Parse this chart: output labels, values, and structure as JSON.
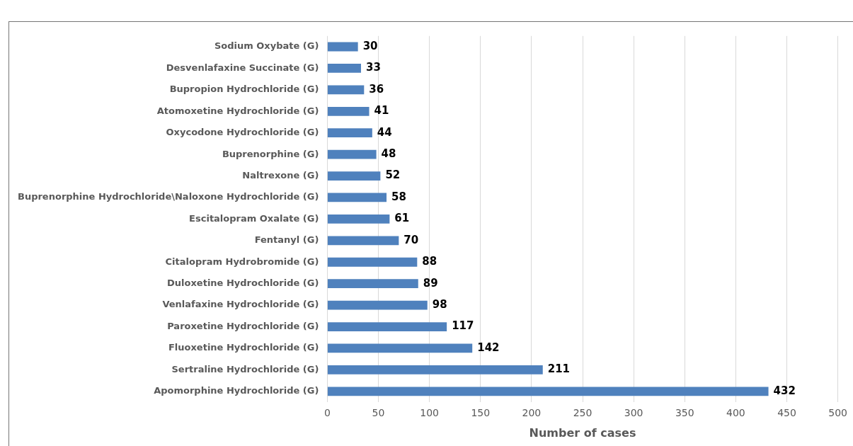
{
  "chart_data": {
    "type": "bar",
    "orientation": "horizontal",
    "xlabel": "Number of cases",
    "categories": [
      "Sodium Oxybate (G)",
      "Desvenlafaxine Succinate (G)",
      "Bupropion Hydrochloride (G)",
      "Atomoxetine Hydrochloride (G)",
      "Oxycodone Hydrochloride (G)",
      "Buprenorphine (G)",
      "Naltrexone (G)",
      "Buprenorphine Hydrochloride\\Naloxone Hydrochloride (G)",
      "Escitalopram Oxalate (G)",
      "Fentanyl (G)",
      "Citalopram Hydrobromide (G)",
      "Duloxetine Hydrochloride (G)",
      "Venlafaxine Hydrochloride (G)",
      "Paroxetine Hydrochloride (G)",
      "Fluoxetine Hydrochloride (G)",
      "Sertraline Hydrochloride (G)",
      "Apomorphine Hydrochloride (G)"
    ],
    "values": [
      30,
      33,
      36,
      41,
      44,
      48,
      52,
      58,
      61,
      70,
      88,
      89,
      98,
      117,
      142,
      211,
      432
    ],
    "color": "#4f81bd",
    "xlim": [
      0,
      500
    ],
    "xticks": [
      0,
      50,
      100,
      150,
      200,
      250,
      300,
      350,
      400,
      450,
      500
    ],
    "grid": "x",
    "data_labels": true
  }
}
